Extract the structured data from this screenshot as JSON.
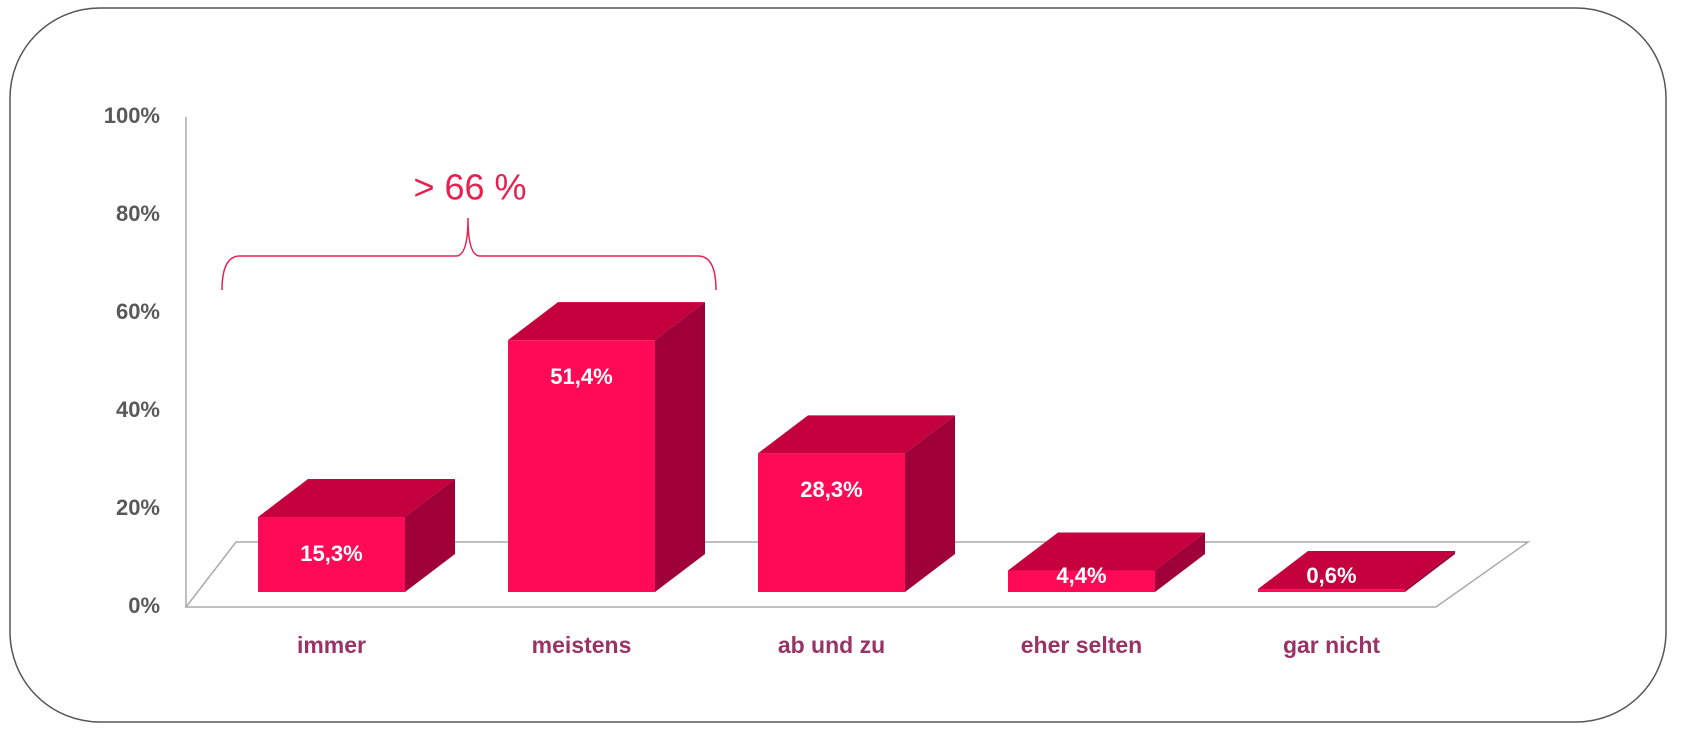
{
  "chart_data": {
    "type": "bar3d",
    "categories": [
      "immer",
      "meistens",
      "ab und zu",
      "eher selten",
      "gar nicht"
    ],
    "values": [
      15.3,
      51.4,
      28.3,
      4.4,
      0.6
    ],
    "value_labels": [
      "15,3%",
      "51,4%",
      "28,3%",
      "4,4%",
      "0,6%"
    ],
    "color": "#ff0a57",
    "ylim": [
      0,
      100
    ],
    "yticks": [
      {
        "value": 0,
        "label": "0%"
      },
      {
        "value": 20,
        "label": "20%"
      },
      {
        "value": 40,
        "label": "40%"
      },
      {
        "value": 60,
        "label": "60%"
      },
      {
        "value": 80,
        "label": "80%"
      },
      {
        "value": 100,
        "label": "100%"
      }
    ],
    "annotation": "> 66 %"
  }
}
